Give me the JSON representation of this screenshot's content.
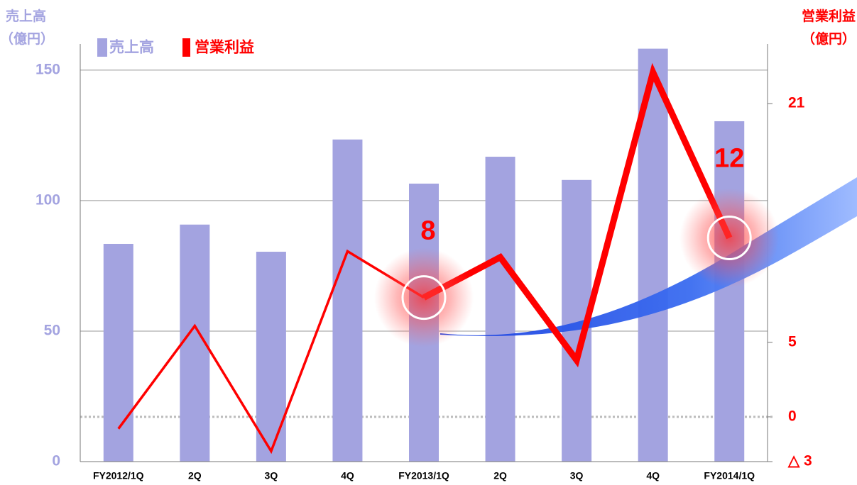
{
  "chart_data": {
    "type": "bar-line",
    "y_label": [
      "売上高",
      "（億円）"
    ],
    "y2_label": [
      "営業利益",
      "（億円）"
    ],
    "categories": [
      "FY2012/1Q",
      "2Q",
      "3Q",
      "4Q",
      "FY2013/1Q",
      "2Q",
      "3Q",
      "4Q",
      "FY2014/1Q"
    ],
    "series": [
      {
        "name": "売上高",
        "type": "bar",
        "color": "#a3a3e0",
        "values": [
          83.4,
          90.8,
          80.4,
          123.4,
          106.5,
          116.8,
          107.9,
          158.2,
          130.4
        ]
      },
      {
        "name": "営業利益",
        "type": "line",
        "axis": "y2",
        "color": "#ff0000",
        "values": [
          -0.8,
          6.1,
          -2.3,
          11.1,
          8,
          10.7,
          3.8,
          23.1,
          12
        ],
        "value_labels": [
          null,
          null,
          null,
          null,
          "8",
          null,
          null,
          null,
          "12"
        ]
      }
    ],
    "ylim": [
      0,
      160
    ],
    "yticks": [
      0,
      50,
      100,
      150
    ],
    "y2lim": [
      -3,
      25
    ],
    "y2ticks": [
      {
        "value": -3,
        "label": "△ 3"
      },
      0,
      5,
      21
    ],
    "grid": true
  }
}
